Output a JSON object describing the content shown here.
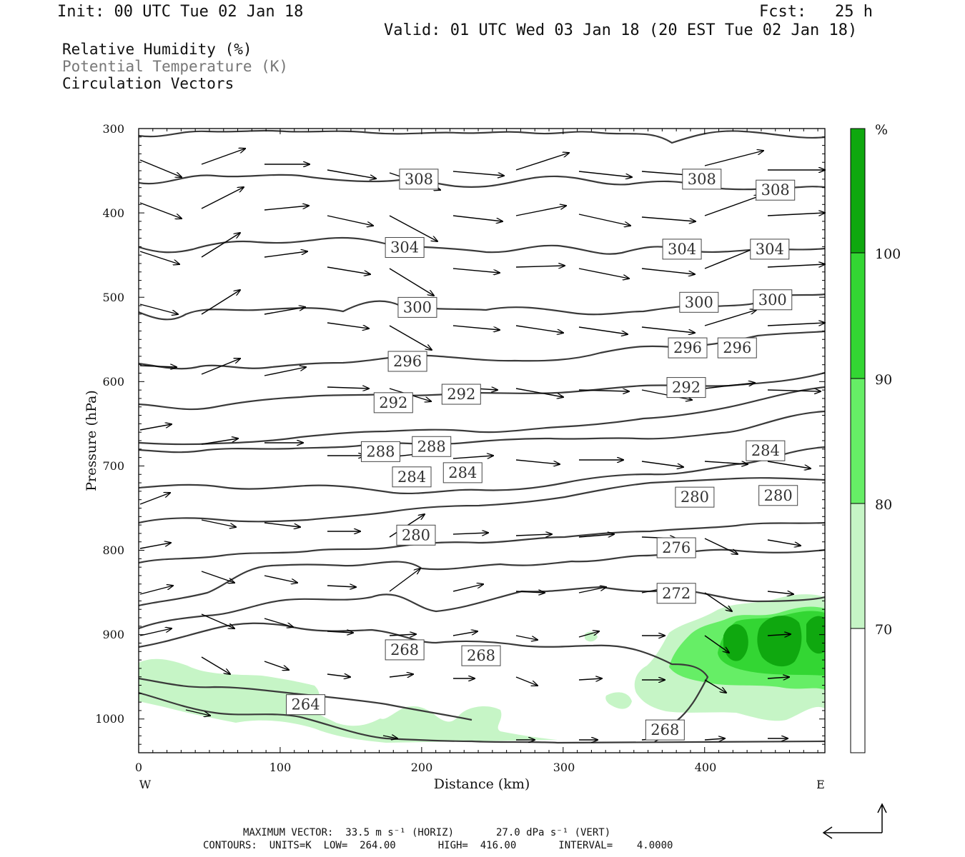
{
  "header": {
    "init": "Init: 00 UTC Tue 02 Jan 18",
    "fcst": "Fcst:   25 h",
    "valid": "Valid: 01 UTC Wed 03 Jan 18 (20 EST Tue 02 Jan 18)"
  },
  "legend": {
    "rh": "Relative Humidity (%)",
    "theta": "Potential Temperature (K)",
    "vectors": "Circulation Vectors"
  },
  "footer": {
    "max_vector": "MAXIMUM VECTOR:  33.5 m s⁻¹ (HORIZ)       27.0 dPa s⁻¹ (VERT)",
    "contours": "CONTOURS:  UNITS=K  LOW=  264.00       HIGH=  416.00       INTERVAL=    4.0000"
  },
  "colors": {
    "contour": "#3a3a3a",
    "arrow": "#000000",
    "rh_70": "#c6f5c6",
    "rh_80": "#66ee66",
    "rh_90": "#33d633",
    "rh_100": "#0fa80f"
  },
  "chart_data": {
    "type": "cross-section",
    "xlabel": "Distance (km)",
    "ylabel": "Pressure (hPa)",
    "xlim": [
      0,
      485
    ],
    "ylim": [
      1040,
      300
    ],
    "x_ticks": [
      "0",
      "100",
      "200",
      "300",
      "400"
    ],
    "y_ticks": [
      "300",
      "400",
      "500",
      "600",
      "700",
      "800",
      "900",
      "1000"
    ],
    "x_end_labels": {
      "west": "W",
      "east": "E"
    },
    "colorbar": {
      "unit": "%",
      "levels": [
        70,
        80,
        90,
        100
      ],
      "labels": [
        "70",
        "80",
        "90",
        "100"
      ],
      "colors": [
        "#c6f5c6",
        "#66ee66",
        "#33d633",
        "#0fa80f"
      ]
    },
    "contour_labels": [
      {
        "text": "308",
        "x": 198,
        "p": 360
      },
      {
        "text": "308",
        "x": 398,
        "p": 360
      },
      {
        "text": "308",
        "x": 450,
        "p": 373
      },
      {
        "text": "304",
        "x": 188,
        "p": 441
      },
      {
        "text": "304",
        "x": 384,
        "p": 443
      },
      {
        "text": "304",
        "x": 446,
        "p": 443
      },
      {
        "text": "300",
        "x": 197,
        "p": 512
      },
      {
        "text": "300",
        "x": 396,
        "p": 506
      },
      {
        "text": "300",
        "x": 448,
        "p": 503
      },
      {
        "text": "296",
        "x": 190,
        "p": 576
      },
      {
        "text": "296",
        "x": 388,
        "p": 560
      },
      {
        "text": "296",
        "x": 423,
        "p": 560
      },
      {
        "text": "292",
        "x": 180,
        "p": 625
      },
      {
        "text": "292",
        "x": 228,
        "p": 615
      },
      {
        "text": "292",
        "x": 387,
        "p": 607
      },
      {
        "text": "288",
        "x": 171,
        "p": 683
      },
      {
        "text": "288",
        "x": 207,
        "p": 677
      },
      {
        "text": "284",
        "x": 193,
        "p": 713
      },
      {
        "text": "284",
        "x": 229,
        "p": 708
      },
      {
        "text": "284",
        "x": 443,
        "p": 682
      },
      {
        "text": "280",
        "x": 196,
        "p": 782
      },
      {
        "text": "280",
        "x": 393,
        "p": 737
      },
      {
        "text": "280",
        "x": 452,
        "p": 735
      },
      {
        "text": "276",
        "x": 380,
        "p": 797
      },
      {
        "text": "272",
        "x": 380,
        "p": 851
      },
      {
        "text": "268",
        "x": 188,
        "p": 918
      },
      {
        "text": "268",
        "x": 242,
        "p": 925
      },
      {
        "text": "268",
        "x": 372,
        "p": 1013
      },
      {
        "text": "264",
        "x": 118,
        "p": 983
      }
    ]
  }
}
